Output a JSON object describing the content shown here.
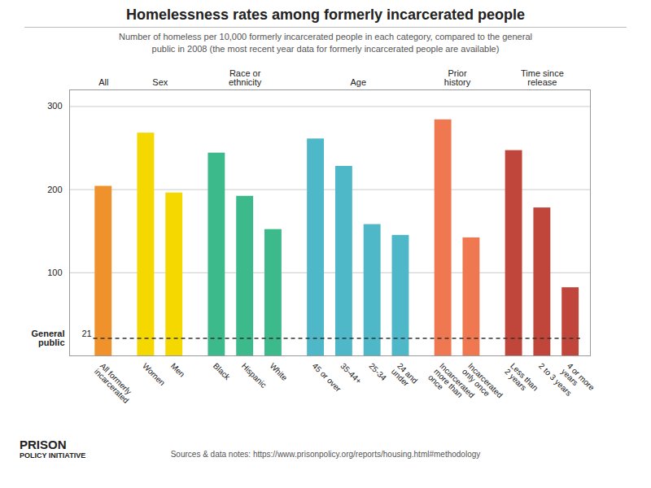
{
  "chart_data": {
    "type": "bar",
    "title": "Homelessness rates among formerly incarcerated people",
    "subtitle": "Number of homeless per 10,000 formerly incarcerated people in each category, compared to the general\npublic in 2008 (the most recent year data for formerly incarcerated people are available)",
    "source": "Sources & data notes: https://www.prisonpolicy.org/reports/housing.html#methodology",
    "logo": [
      "PRISON",
      "POLICY INITIATIVE"
    ],
    "categories": [
      "All formerly\nincarcerated",
      "Women",
      "Men",
      "Black",
      "Hispanic",
      "White",
      "45 or over",
      "35-44+",
      "25-34",
      "24 and\nunder",
      "Incarcerated\nmore than\nonce",
      "Incarcerated\nonly once",
      "Less than\n2 years",
      "2 to 3 years",
      "4 or more\nyears"
    ],
    "values": [
      204,
      268,
      196,
      244,
      192,
      152,
      261,
      228,
      158,
      145,
      284,
      142,
      247,
      178,
      82
    ],
    "colors": [
      "#f0922b",
      "#f5d800",
      "#f5d800",
      "#3dba8c",
      "#3dba8c",
      "#3dba8c",
      "#4eb8c8",
      "#4eb8c8",
      "#4eb8c8",
      "#4eb8c8",
      "#f07850",
      "#f07850",
      "#c0453a",
      "#c0453a",
      "#c0453a"
    ],
    "groups": [
      "All",
      "Sex",
      "Sex",
      "Race or\nethnicity",
      "Race or\nethnicity",
      "Race or\nethnicity",
      "Age",
      "Age",
      "Age",
      "Age",
      "Prior\nhistory",
      "Prior\nhistory",
      "Time since\nrelease",
      "Time since\nrelease",
      "Time since\nrelease"
    ],
    "group_order": [
      "All",
      "Sex",
      "Race or\nethnicity",
      "Age",
      "Prior\nhistory",
      "Time since\nrelease"
    ],
    "reference_line": {
      "label": "General\npublic",
      "value": 21
    },
    "ylim": [
      0,
      320
    ],
    "yticks": [
      100,
      200,
      300
    ],
    "grid": true
  }
}
